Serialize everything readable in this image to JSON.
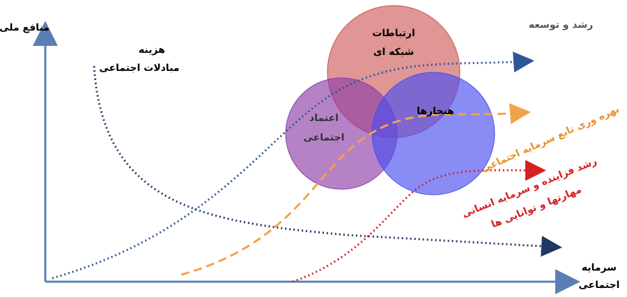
{
  "axes": {
    "y_label": "منافع ملی",
    "x_label": [
      "سرمایه",
      "اجتماعی"
    ]
  },
  "circles": [
    {
      "label": [
        "ارتباطات",
        "شبکه ای"
      ]
    },
    {
      "label": [
        "اعتماد",
        "اجتماعی"
      ]
    },
    {
      "label": [
        "هنجارها"
      ]
    }
  ],
  "curves": [
    {
      "label": [
        "هزینه",
        "مبادلات اجتماعی"
      ]
    },
    {
      "label": [
        "رشد و توسعه"
      ]
    },
    {
      "label": [
        "بهره وری تابع سرمایه اجتماعی"
      ]
    },
    {
      "label": [
        "رشد فزاینده و سرمایه انسانی",
        "مهارتها و توانایی ها"
      ]
    }
  ]
}
